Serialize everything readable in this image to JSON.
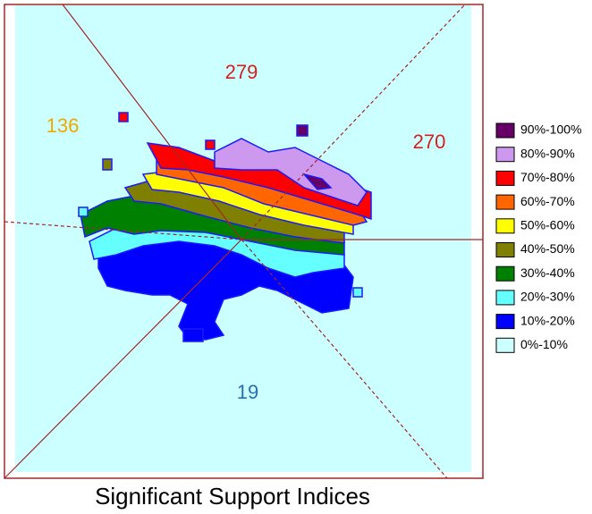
{
  "chart_data": {
    "type": "contour",
    "title": "Significant Support Indices",
    "annotations": [
      {
        "text": "279",
        "color": "#d42020"
      },
      {
        "text": "136",
        "color": "#f0a800"
      },
      {
        "text": "270",
        "color": "#d42020"
      },
      {
        "text": "19",
        "color": "#2a6fae"
      }
    ],
    "series": [
      {
        "name": "90%-100%",
        "color": "#660066"
      },
      {
        "name": "80%-90%",
        "color": "#cc99ee"
      },
      {
        "name": "70%-80%",
        "color": "#ff0000"
      },
      {
        "name": "60%-70%",
        "color": "#ff6600"
      },
      {
        "name": "50%-60%",
        "color": "#ffff00"
      },
      {
        "name": "40%-50%",
        "color": "#808000"
      },
      {
        "name": "30%-40%",
        "color": "#008000"
      },
      {
        "name": "20%-30%",
        "color": "#66ffff"
      },
      {
        "name": "10%-20%",
        "color": "#0000ff"
      },
      {
        "name": "0%-10%",
        "color": "#ccffff"
      }
    ]
  }
}
